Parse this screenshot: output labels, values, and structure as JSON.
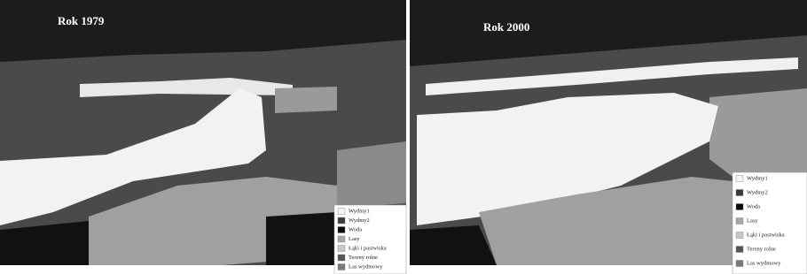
{
  "panels": [
    {
      "title": "Rok 1979",
      "legend": [
        {
          "label": "Wydmy1",
          "color": "#f4f4f4"
        },
        {
          "label": "Wydmy2",
          "color": "#3a3a3a"
        },
        {
          "label": "Woda",
          "color": "#0a0a0a"
        },
        {
          "label": "Lasy",
          "color": "#a8a8a8"
        },
        {
          "label": "Łąki i pastwiska",
          "color": "#c8c8c8"
        },
        {
          "label": "Tereny rolne",
          "color": "#555555"
        },
        {
          "label": "Las wydmowy",
          "color": "#7a7a7a"
        }
      ]
    },
    {
      "title": "Rok 2000",
      "legend": [
        {
          "label": "Wydmy1",
          "color": "#f4f4f4"
        },
        {
          "label": "Wydmy2",
          "color": "#3a3a3a"
        },
        {
          "label": "Woda",
          "color": "#0a0a0a"
        },
        {
          "label": "Lasy",
          "color": "#a8a8a8"
        },
        {
          "label": "Łąki i pastwiska",
          "color": "#c8c8c8"
        },
        {
          "label": "Tereny rolne",
          "color": "#555555"
        },
        {
          "label": "Las wydmowy",
          "color": "#7a7a7a"
        }
      ]
    }
  ]
}
